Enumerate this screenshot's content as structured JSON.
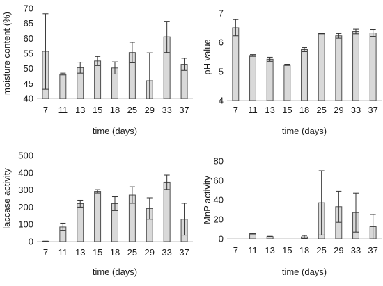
{
  "figure": {
    "bar_fill": "#d9d9d9",
    "bar_stroke": "#4d4d4d",
    "axis_color": "#bfbfbf",
    "error_color": "#333333"
  },
  "chart_data": [
    {
      "type": "bar",
      "categories": [
        "7",
        "11",
        "13",
        "15",
        "18",
        "25",
        "29",
        "33",
        "37"
      ],
      "values": [
        55.7,
        48.2,
        50.3,
        52.5,
        50.2,
        55.3,
        46.0,
        60.5,
        51.4
      ],
      "error": [
        12.5,
        0.3,
        1.8,
        1.5,
        2.0,
        3.4,
        9.2,
        5.2,
        2.0
      ],
      "xlabel": "time (days)",
      "ylabel": "moisture content (%)",
      "ylim": [
        40,
        70
      ],
      "yticks": [
        40,
        45,
        50,
        55,
        60,
        65,
        70
      ],
      "grid": false
    },
    {
      "type": "bar",
      "categories": [
        "7",
        "11",
        "13",
        "15",
        "18",
        "25",
        "29",
        "33",
        "37"
      ],
      "values": [
        6.5,
        5.55,
        5.42,
        5.23,
        5.75,
        6.3,
        6.22,
        6.37,
        6.32
      ],
      "error": [
        0.28,
        0.03,
        0.07,
        0.02,
        0.07,
        0.01,
        0.08,
        0.08,
        0.12
      ],
      "xlabel": "time (days)",
      "ylabel": "pH value",
      "ylim": [
        4,
        7
      ],
      "yticks": [
        4,
        5,
        6,
        7
      ],
      "grid": false
    },
    {
      "type": "bar",
      "categories": [
        "7",
        "11",
        "13",
        "15",
        "18",
        "25",
        "29",
        "33",
        "37"
      ],
      "values": [
        2,
        85,
        220,
        292,
        220,
        270,
        192,
        345,
        130
      ],
      "error": [
        1,
        22,
        20,
        10,
        40,
        48,
        62,
        42,
        92
      ],
      "xlabel": "time (days)",
      "ylabel": "laccase activity",
      "ylim": [
        0,
        500
      ],
      "yticks": [
        0,
        100,
        200,
        300,
        400,
        500
      ],
      "grid": false
    },
    {
      "type": "bar",
      "categories": [
        "7",
        "11",
        "13",
        "15",
        "18",
        "25",
        "29",
        "33",
        "37"
      ],
      "values": [
        0,
        5.5,
        2.3,
        0,
        2.0,
        37,
        33,
        27,
        12.5
      ],
      "error": [
        0,
        0.5,
        0.4,
        0,
        1.5,
        33,
        16,
        20,
        12.5
      ],
      "xlabel": "time (days)",
      "ylabel": "MnP activity",
      "ylim": [
        0,
        80
      ],
      "yticks": [
        0,
        20,
        40,
        60,
        80
      ],
      "grid": false
    }
  ]
}
